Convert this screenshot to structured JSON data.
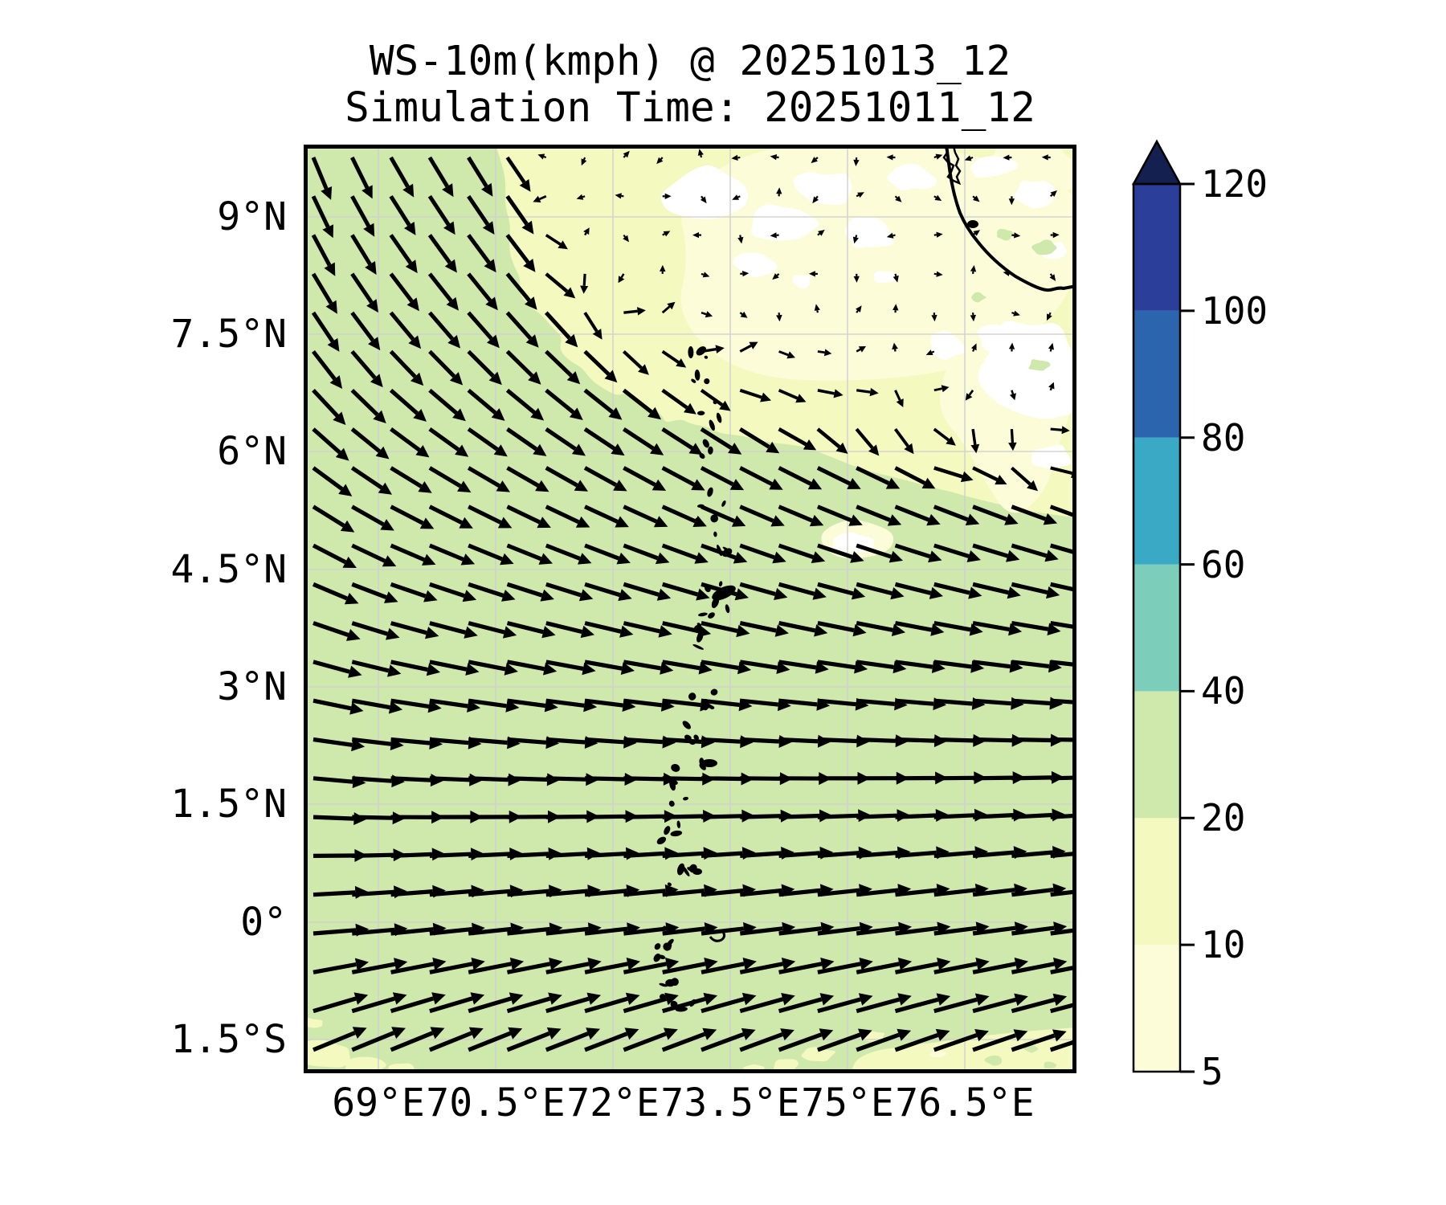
{
  "title": {
    "line1": "WS-10m(kmph) @ 20251013_12",
    "line2": "Simulation Time: 20251011_12"
  },
  "map": {
    "x_tick_labels": [
      "69°E",
      "70.5°E",
      "72°E",
      "73.5°E",
      "75°E",
      "76.5°E"
    ],
    "y_tick_labels": [
      "9°N",
      "7.5°N",
      "6°N",
      "4.5°N",
      "3°N",
      "1.5°N",
      "0°",
      "1.5°S"
    ]
  },
  "colorbar": {
    "tick_labels": [
      "5",
      "10",
      "20",
      "40",
      "60",
      "80",
      "100",
      "120"
    ],
    "levels": [
      5,
      10,
      20,
      40,
      60,
      80,
      100,
      120
    ],
    "segment_colors": [
      "#fcfdd8",
      "#f4f9c0",
      "#cfe8ab",
      "#7dcdbb",
      "#39a9c5",
      "#2a65ad",
      "#2a3e9a"
    ],
    "over_color": "#142150",
    "extend": "max"
  },
  "chart_data": {
    "type": "contour_quiver_map",
    "title": "WS-10m(kmph) @ 20251013_12",
    "subtitle": "Simulation Time: 20251011_12",
    "variable": "10 m wind speed",
    "units": "kmph",
    "x_tick_labels": [
      "69°E",
      "70.5°E",
      "72°E",
      "73.5°E",
      "75°E",
      "76.5°E"
    ],
    "y_tick_labels": [
      "9°N",
      "7.5°N",
      "6°N",
      "4.5°N",
      "3°N",
      "1.5°N",
      "0°",
      "1.5°S"
    ],
    "contour_levels": [
      5,
      10,
      20,
      40,
      60,
      80,
      100,
      120
    ],
    "colormap_colors": [
      "#fcfdd8",
      "#f4f9c0",
      "#cfe8ab",
      "#7dcdbb",
      "#39a9c5",
      "#2a65ad",
      "#2a3e9a"
    ],
    "over_color": "#142150",
    "background_speed_band_kmph": [
      20,
      40
    ],
    "speed_regions": [
      {
        "area": "west and south of domain (most of map)",
        "range_kmph": "20-40",
        "flow": "NW winds turning SE at top-left to E-NE at bottom, speeds 22-33 kmph"
      },
      {
        "area": "northeast quadrant near Indian coast",
        "range_kmph": "5-20",
        "flow": "light and variable, patches below 5 kmph (white)"
      },
      {
        "area": "southern edge band near 1.5S-2S east of 70.5E",
        "range_kmph": "10-20",
        "flow": "easterly"
      }
    ],
    "wind_model": {
      "comment": "piecewise-linear estimate of the quiver field; fy=0 top, fy=1 bottom of map",
      "angle_down_deg_by_fy": [
        [
          0,
          62
        ],
        [
          0.2,
          50
        ],
        [
          0.35,
          32
        ],
        [
          0.5,
          17
        ],
        [
          0.65,
          5
        ],
        [
          0.8,
          -4
        ],
        [
          1,
          -10
        ]
      ],
      "speed_kmph_by_fy": [
        [
          0,
          26
        ],
        [
          0.3,
          27
        ],
        [
          0.5,
          28
        ],
        [
          0.7,
          30
        ],
        [
          1,
          33
        ]
      ],
      "calm_zone_boundary_ylocal_by_fx": [
        [
          0.25,
          0
        ],
        [
          0.27,
          50
        ],
        [
          0.3,
          155
        ],
        [
          0.33,
          240
        ],
        [
          0.42,
          310
        ],
        [
          0.52,
          350
        ],
        [
          0.62,
          372
        ],
        [
          0.72,
          400
        ],
        [
          0.83,
          430
        ],
        [
          1,
          462
        ]
      ],
      "calm_zone_min_speed_kmph": 3
    },
    "features": {
      "coastline": "southwest India (Kerala coast) crossing top-right corner",
      "islands": "Maldives atoll chain of small islets near 73°E from ~7°N to ~2°S"
    }
  }
}
